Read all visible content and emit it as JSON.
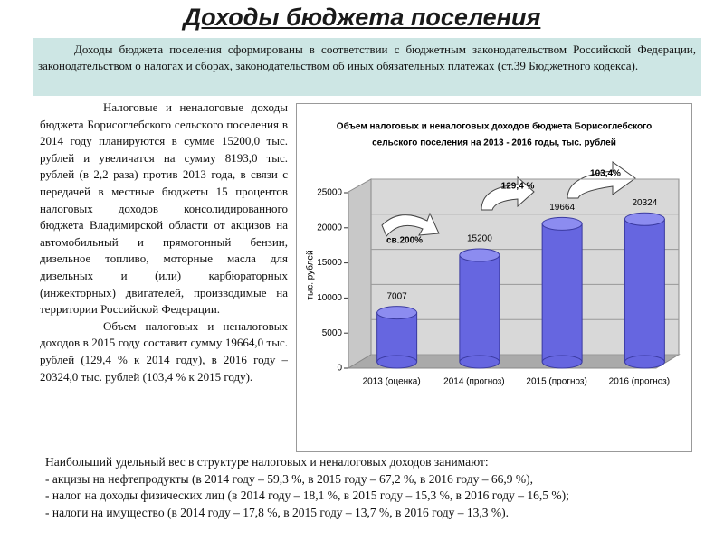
{
  "header": {
    "title": "Доходы бюджета поселения"
  },
  "intro": "Доходы бюджета поселения сформированы в соответствии с бюджетным законодательством Российской Федерации, законодательством о налогах и сборах, законодательством об иных обязательных платежах (ст.39 Бюджетного кодекса).",
  "body": [
    "Налоговые и неналоговые доходы бюджета Борисоглебского сельского поселения в 2014 году планируются в сумме 15200,0 тыс. рублей и увеличатся на сумму 8193,0 тыс. рублей (в 2,2 раза) против 2013 года, в связи с передачей в местные бюджеты 15 процентов налоговых доходов консолидированного бюджета Владимирской области от акцизов на автомобильный и прямогонный бензин, дизельное топливо, моторные масла для дизельных и (или) карбюраторных (инжекторных) двигателей, производимые на территории Российской Федерации.",
    "Объем налоговых и неналоговых доходов в 2015 году составит сумму 19664,0 тыс. рублей (129,4 % к 2014 году), в 2016 году – 20324,0 тыс. рублей (103,4 % к 2015 году)."
  ],
  "chart_data": {
    "type": "bar",
    "title": [
      "Объем налоговых и неналоговых доходов бюджета Борисоглебского",
      "сельского поселения на 2013 - 2016 годы, тыс. рублей"
    ],
    "y_label": "тыс. рублей",
    "categories": [
      "2013 (оценка)",
      "2014 (прогноз)",
      "2015 (прогноз)",
      "2016 (прогноз)"
    ],
    "values": [
      7007,
      15200,
      19664,
      20324
    ],
    "color": "#6666e0",
    "annotations": [
      "св.200%",
      "129,4 %",
      "103,4%"
    ],
    "ylim": [
      0,
      25000
    ],
    "yticks": [
      0,
      5000,
      10000,
      15000,
      20000,
      25000
    ],
    "grid": true
  },
  "footer": [
    "Наибольший удельный вес в структуре налоговых и неналоговых доходов занимают:",
    "- акцизы на нефтепродукты (в 2014 году – 59,3 %, в 2015 году – 67,2 %, в 2016 году – 66,9 %),",
    "- налог на доходы физических лиц (в 2014 году – 18,1 %, в 2015 году – 15,3 %, в 2016 году – 16,5 %);",
    "- налоги на имущество (в 2014 году – 17,8 %, в 2015 году – 13,7 %, в 2016 году – 13,3 %)."
  ]
}
